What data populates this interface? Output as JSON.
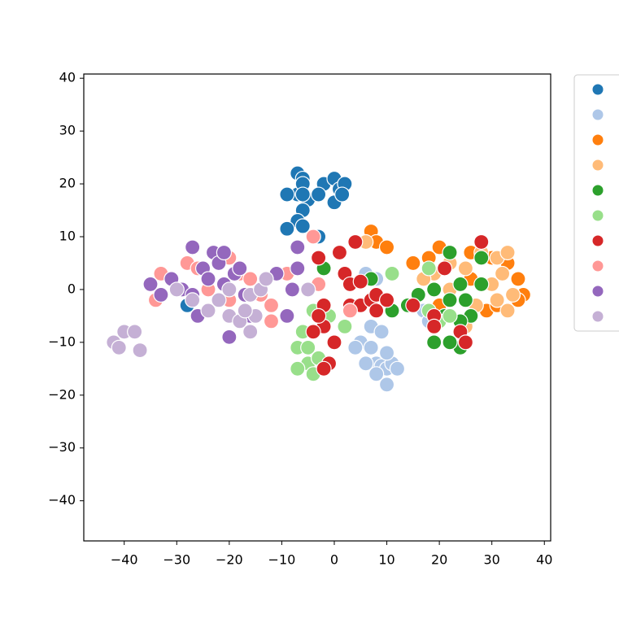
{
  "chart_data": {
    "type": "scatter",
    "xlim": [
      -47.7,
      41.2
    ],
    "ylim": [
      -47.6,
      40.8
    ],
    "xticks": [
      {
        "value": -40,
        "label": "−40"
      },
      {
        "value": -30,
        "label": "−30"
      },
      {
        "value": -20,
        "label": "−20"
      },
      {
        "value": -10,
        "label": "−10"
      },
      0,
      10,
      20,
      30,
      40
    ],
    "yticks": [
      {
        "value": -40,
        "label": "−40"
      },
      {
        "value": -30,
        "label": "−30"
      },
      {
        "value": -20,
        "label": "−20"
      },
      {
        "value": -10,
        "label": "−10"
      },
      0,
      10,
      20,
      30,
      40
    ],
    "grid": false,
    "legend": "outside-right",
    "series": [
      {
        "color": "#1f77b4",
        "x": [
          -7,
          -6,
          -7,
          -9,
          -6,
          -5,
          -6,
          -7,
          -6,
          -9,
          -3,
          -2,
          0,
          1,
          2,
          0,
          -6,
          -28,
          -3,
          1.5
        ],
        "values": [
          22,
          21,
          18,
          18,
          20,
          17,
          15,
          13,
          12,
          11.5,
          10,
          20,
          21,
          19,
          20,
          16.5,
          18,
          -3,
          18,
          18
        ]
      },
      {
        "color": "#aec7e8",
        "x": [
          5,
          7,
          8,
          9,
          10,
          10,
          11,
          7,
          4,
          9,
          10,
          12,
          6,
          8,
          17,
          18,
          6,
          8
        ],
        "values": [
          -10,
          -7,
          -14,
          -14.5,
          -15,
          -18,
          -14,
          -11,
          -11,
          -8,
          -12,
          -15,
          3,
          2,
          -4,
          -6,
          -14,
          -16
        ]
      },
      {
        "color": "#ff7f0e",
        "x": [
          7,
          8,
          10,
          15,
          18,
          20,
          26,
          30,
          33,
          35,
          36,
          35,
          33,
          29,
          31,
          20,
          26
        ],
        "values": [
          11,
          9,
          8,
          5,
          6,
          8,
          7,
          6,
          5,
          2,
          -1,
          -2,
          -4,
          -4,
          -3,
          -3,
          2
        ]
      },
      {
        "color": "#ffbb78",
        "x": [
          6,
          19,
          22,
          25,
          28,
          31,
          33,
          32,
          34,
          33,
          30,
          27,
          25,
          17,
          22,
          31
        ],
        "values": [
          9,
          3,
          5,
          4,
          7,
          6,
          7,
          3,
          -1,
          -4,
          1,
          -3,
          -7,
          2,
          0,
          -2
        ]
      },
      {
        "color": "#2ca02c",
        "x": [
          -2,
          7,
          11,
          14,
          16,
          19,
          22,
          22,
          24,
          25,
          26,
          28,
          28,
          24,
          22,
          19,
          21,
          24
        ],
        "values": [
          4,
          2,
          -4,
          -3,
          -1,
          0,
          -2,
          7,
          1,
          -2,
          -5,
          1,
          6,
          -11,
          -10,
          -10,
          -5,
          -6
        ]
      },
      {
        "color": "#98df8a",
        "x": [
          -7,
          -5,
          -4,
          -5,
          -3,
          -4,
          -1,
          2,
          3,
          11,
          18,
          20,
          22,
          18,
          -7,
          -6
        ],
        "values": [
          -11,
          -14,
          -16,
          -11,
          -13,
          -4,
          -5,
          -7,
          -3,
          3,
          4,
          -6,
          -5,
          -4,
          -15,
          -8
        ]
      },
      {
        "color": "#d62728",
        "x": [
          -3,
          1,
          2,
          3,
          4,
          5,
          3,
          5,
          7,
          8,
          10,
          15,
          19,
          19,
          21,
          24,
          25,
          28,
          -2,
          -2,
          0,
          -1,
          -2,
          -3,
          -4,
          8
        ],
        "values": [
          6,
          7,
          3,
          1,
          9,
          1.5,
          -3,
          -3,
          -2,
          -1,
          -2,
          -3,
          -5,
          -7,
          4,
          -8,
          -10,
          9,
          -3,
          -7,
          -10,
          -14,
          -15,
          -5,
          -8,
          -4
        ]
      },
      {
        "color": "#ff9896",
        "x": [
          -33,
          -31,
          -28,
          -26,
          -23,
          -20,
          -18,
          -16,
          -14,
          -12,
          -12,
          -9,
          -4,
          -3,
          3,
          -34,
          -24,
          -20
        ],
        "values": [
          3,
          2,
          5,
          4,
          7,
          6,
          3,
          2,
          -1,
          -3,
          -6,
          3,
          10,
          1,
          -4,
          -2,
          0,
          -2
        ]
      },
      {
        "color": "#9467bd",
        "x": [
          -35,
          -33,
          -31,
          -29,
          -27,
          -26,
          -25,
          -24,
          -23,
          -22,
          -21,
          -19,
          -18,
          -17,
          -20,
          -16,
          -11,
          -9,
          -7,
          -7,
          -8,
          -21,
          -27
        ],
        "values": [
          1,
          -1,
          2,
          0,
          8,
          -5,
          4,
          2,
          7,
          5,
          7,
          3,
          4,
          -1,
          -9,
          -5,
          3,
          -5,
          8,
          4,
          0,
          1,
          -1
        ]
      },
      {
        "color": "#c5b0d5",
        "x": [
          -42,
          -40,
          -38,
          -41,
          -37,
          -30,
          -27,
          -24,
          -22,
          -20,
          -18,
          -16,
          -15,
          -16,
          -14,
          -13,
          -5,
          -20,
          -17
        ],
        "values": [
          -10,
          -8,
          -8,
          -11,
          -11.5,
          0,
          -2,
          -4,
          -2,
          -5,
          -6,
          -8,
          -5,
          -1,
          0,
          2,
          0,
          0,
          -4
        ]
      }
    ]
  }
}
